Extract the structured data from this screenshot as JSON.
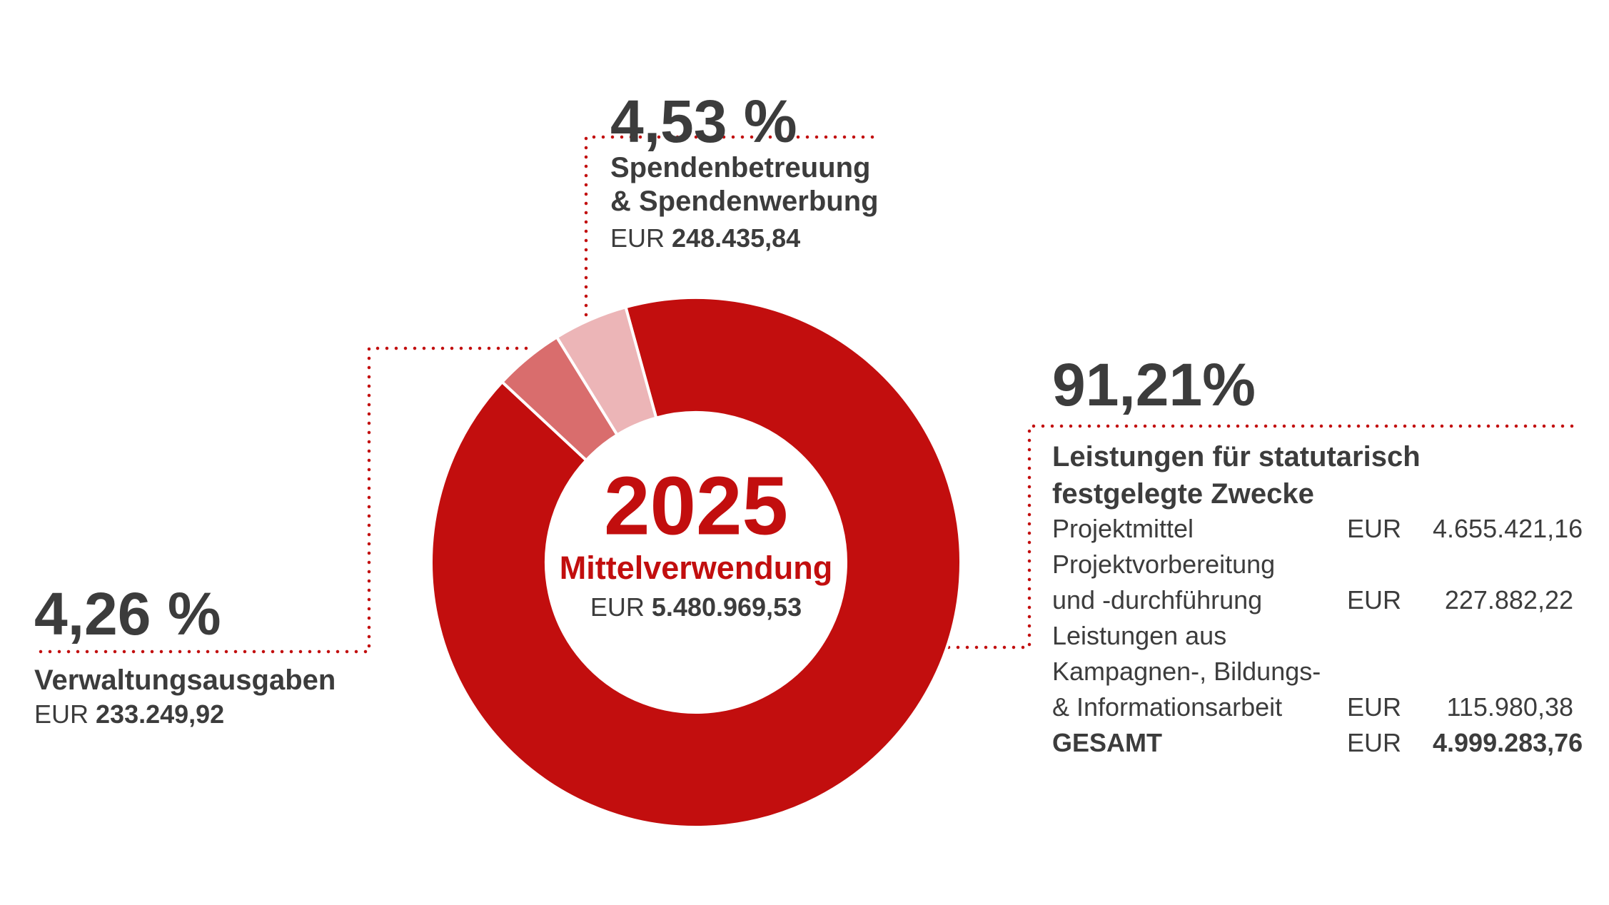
{
  "chart_data": {
    "type": "donut",
    "title": "2025",
    "subtitle": "Mittelverwendung",
    "total": {
      "currency": "EUR",
      "amount": "5.480.969,53"
    },
    "categories": [
      "Leistungen für statutarisch\nfestgelegte Zwecke",
      "Verwaltungsausgaben",
      "Spendenbetreuung\n& Spendenwerbung"
    ],
    "values": [
      91.21,
      4.26,
      4.53
    ],
    "value_labels": [
      "91,21%",
      "4,26 %",
      "4,53 %"
    ],
    "colors": [
      "#c20e0e",
      "#d96d6d",
      "#ecb5b7"
    ],
    "detail_amounts": [
      {
        "currency": "EUR",
        "amount": "233.249,92"
      },
      {
        "currency": "EUR",
        "amount": "248.435,84"
      }
    ],
    "breakdown": {
      "rows": [
        {
          "label": "Projektmittel",
          "currency": "EUR",
          "amount": "4.655.421,16"
        },
        {
          "label": "Projektvorbereitung\nund -durchführung",
          "currency": "EUR",
          "amount": "227.882,22"
        },
        {
          "label": "Leistungen aus\nKampagnen-, Bildungs-\n& Informationsarbeit",
          "currency": "EUR",
          "amount": "115.980,38"
        }
      ],
      "total": {
        "label": "GESAMT",
        "currency": "EUR",
        "amount": "4.999.283,76"
      }
    }
  }
}
